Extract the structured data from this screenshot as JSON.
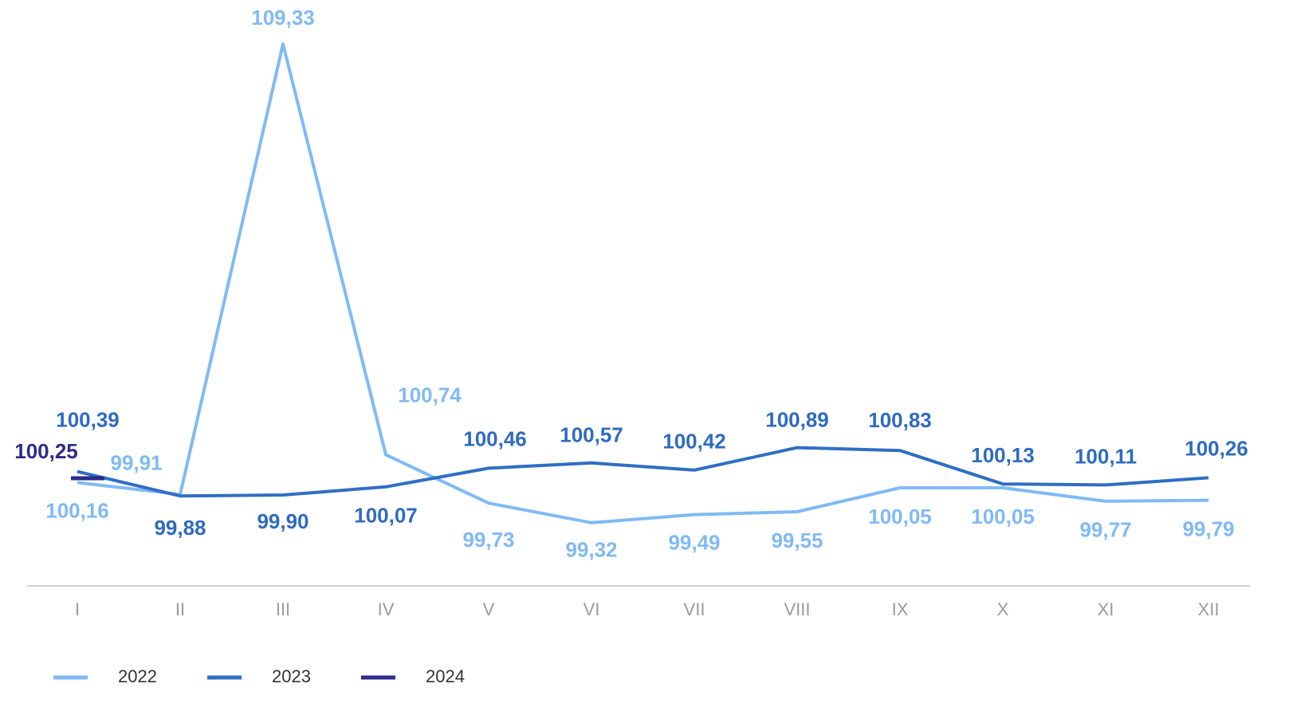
{
  "chart_data": {
    "type": "line",
    "categories": [
      "I",
      "II",
      "III",
      "IV",
      "V",
      "VI",
      "VII",
      "VIII",
      "IX",
      "X",
      "XI",
      "XII"
    ],
    "series": [
      {
        "name": "2022",
        "color": "#7fbaf5",
        "values": [
          100.16,
          99.91,
          109.33,
          100.74,
          99.73,
          99.32,
          99.49,
          99.55,
          100.05,
          100.05,
          99.77,
          99.79
        ],
        "value_labels": [
          "100,16",
          "99,91",
          "109,33",
          "100,74",
          "99,73",
          "99,32",
          "99,49",
          "99,55",
          "100,05",
          "100,05",
          "99,77",
          "99,79"
        ]
      },
      {
        "name": "2023",
        "color": "#2f6ec4",
        "values": [
          100.39,
          99.88,
          99.9,
          100.07,
          100.46,
          100.57,
          100.42,
          100.89,
          100.83,
          100.13,
          100.11,
          100.26
        ],
        "value_labels": [
          "100,39",
          "99,88",
          "99,90",
          "100,07",
          "100,46",
          "100,57",
          "100,42",
          "100,89",
          "100,83",
          "100,13",
          "100,11",
          "100,26"
        ]
      },
      {
        "name": "2024",
        "color": "#2e2a8c",
        "values": [
          100.25,
          null,
          null,
          null,
          null,
          null,
          null,
          null,
          null,
          null,
          null,
          null
        ],
        "value_labels": [
          "100,25",
          null,
          null,
          null,
          null,
          null,
          null,
          null,
          null,
          null,
          null,
          null
        ]
      }
    ],
    "ylim": [
      98,
      110.25
    ],
    "legend": "bottom-left"
  }
}
